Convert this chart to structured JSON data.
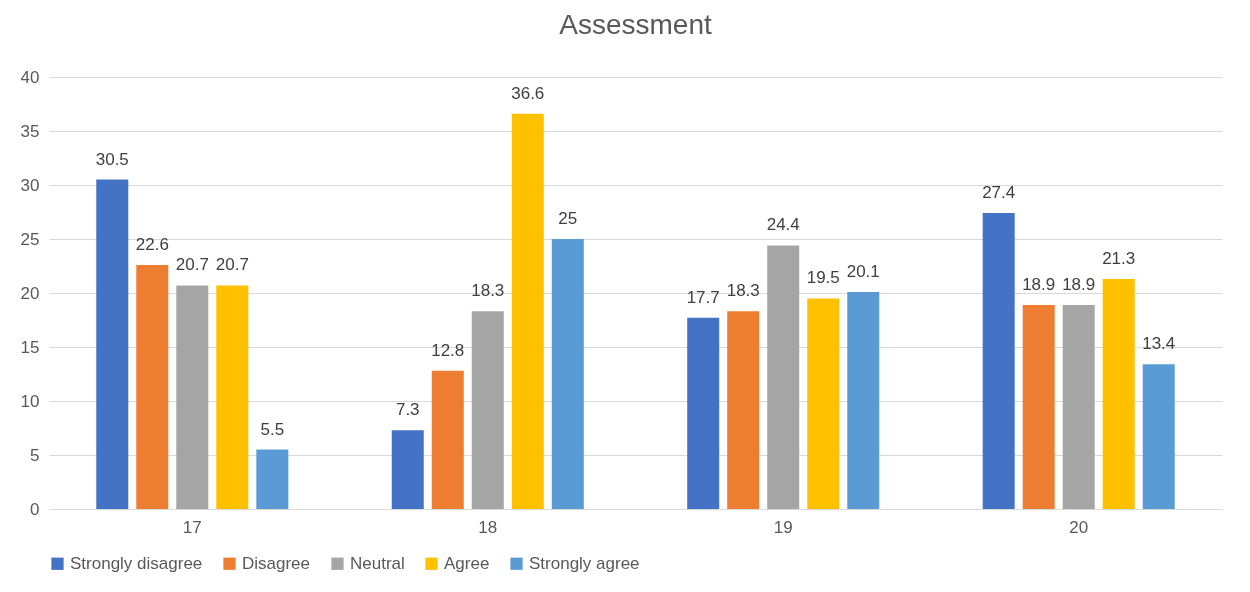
{
  "chart_data": {
    "type": "bar",
    "title": "Assessment",
    "categories": [
      "17",
      "18",
      "19",
      "20"
    ],
    "series": [
      {
        "name": "Strongly disagree",
        "color": "#4472c4",
        "values": [
          30.5,
          7.3,
          17.7,
          27.4
        ]
      },
      {
        "name": "Disagree",
        "color": "#ed7d31",
        "values": [
          22.6,
          12.8,
          18.3,
          18.9
        ]
      },
      {
        "name": "Neutral",
        "color": "#a5a5a5",
        "values": [
          20.7,
          18.3,
          24.4,
          18.9
        ]
      },
      {
        "name": "Agree",
        "color": "#ffc000",
        "values": [
          20.7,
          36.6,
          19.5,
          21.3
        ]
      },
      {
        "name": "Strongly agree",
        "color": "#5b9bd5",
        "values": [
          5.5,
          25,
          20.1,
          13.4
        ]
      }
    ],
    "ylim": [
      0,
      40
    ],
    "yticks": [
      0,
      5,
      10,
      15,
      20,
      25,
      30,
      35,
      40
    ],
    "grid": "y",
    "legend": "bottom",
    "data_labels": true
  }
}
